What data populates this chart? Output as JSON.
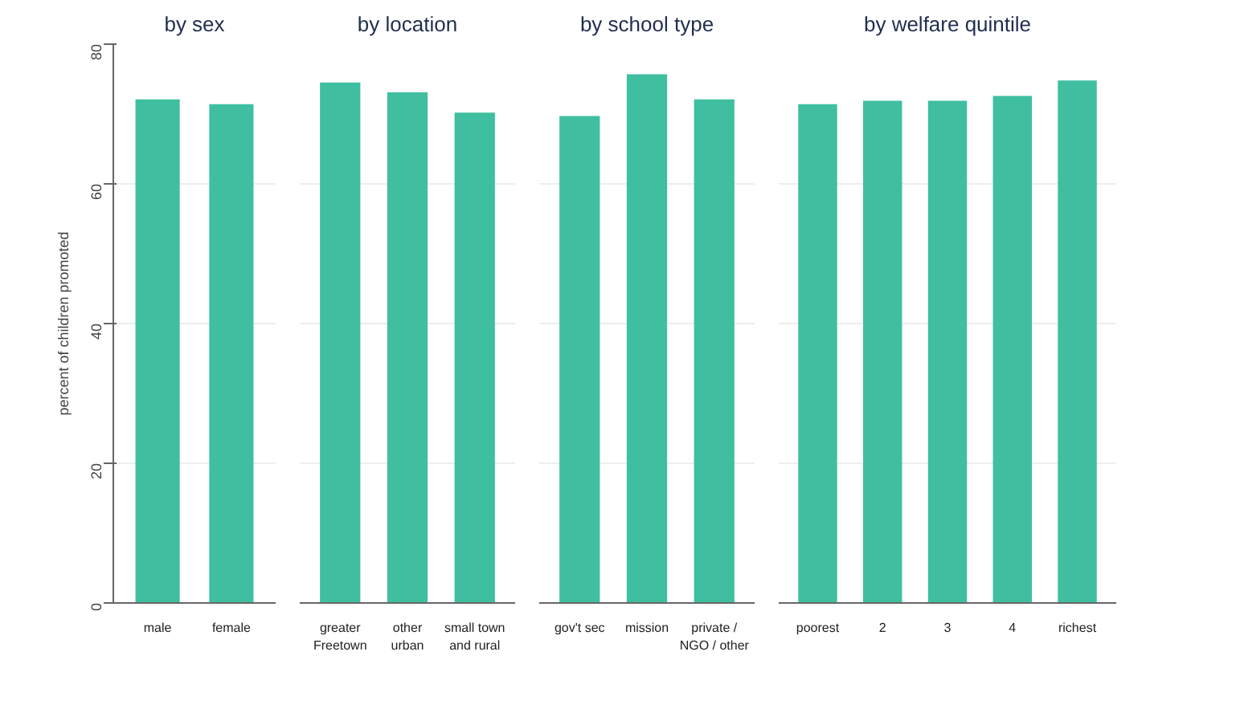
{
  "chart_data": [
    {
      "type": "bar",
      "title": "by sex",
      "ylabel": "percent of children promoted",
      "categories": [
        "male",
        "female"
      ],
      "values": [
        72.1,
        71.4
      ],
      "color": "#3fbf9f",
      "ylim": [
        0,
        80
      ],
      "yticks": [
        0,
        20,
        40,
        60,
        80
      ],
      "grid": "y"
    },
    {
      "type": "bar",
      "title": "by location",
      "categories": [
        "greater\nFreetown",
        "other\nurban",
        "small town\nand rural"
      ],
      "values": [
        74.5,
        73.1,
        70.2
      ],
      "color": "#3fbf9f",
      "ylim": [
        0,
        80
      ],
      "yticks": [
        0,
        20,
        40,
        60,
        80
      ],
      "grid": "y",
      "tick_labels": "x"
    },
    {
      "type": "bar",
      "title": "by school type",
      "categories": [
        "gov't sec",
        "mission",
        "private /\nNGO / other"
      ],
      "values": [
        69.7,
        75.7,
        72.1
      ],
      "color": "#3fbf9f",
      "ylim": [
        0,
        80
      ],
      "yticks": [
        0,
        20,
        40,
        60,
        80
      ],
      "grid": "y",
      "tick_labels": "x"
    },
    {
      "type": "bar",
      "title": "by welfare quintile",
      "categories": [
        "poorest",
        "2",
        "3",
        "4",
        "richest"
      ],
      "values": [
        71.4,
        71.9,
        71.9,
        72.6,
        74.8
      ],
      "color": "#3fbf9f",
      "ylim": [
        0,
        80
      ],
      "yticks": [
        0,
        20,
        40,
        60,
        80
      ],
      "grid": "y",
      "tick_labels": "x"
    }
  ]
}
